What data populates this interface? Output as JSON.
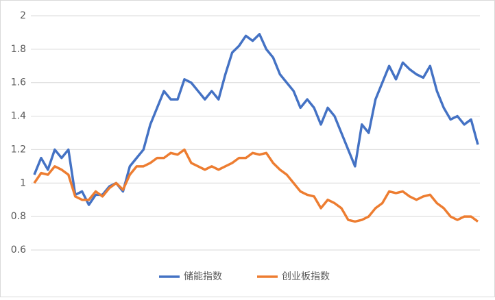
{
  "chart_data": {
    "type": "line",
    "categories": [
      null,
      null,
      null,
      null,
      null,
      null,
      null,
      null,
      null,
      null,
      null,
      null,
      null,
      null,
      null,
      null,
      null,
      null,
      null,
      null,
      null,
      null,
      null,
      null,
      null,
      null,
      null,
      null,
      null,
      null,
      null,
      null,
      null,
      null,
      null,
      null,
      null,
      null,
      null,
      null,
      null,
      null,
      null,
      null,
      null,
      null,
      null,
      null,
      null,
      null,
      null,
      null,
      null,
      null,
      null,
      null,
      null,
      null,
      null,
      null,
      null,
      null,
      null,
      null,
      null,
      null
    ],
    "series": [
      {
        "name": "储能指数",
        "color": "#4472c4",
        "values": [
          1.05,
          1.15,
          1.08,
          1.2,
          1.15,
          1.2,
          0.93,
          0.95,
          0.87,
          0.93,
          0.93,
          0.98,
          1.0,
          0.95,
          1.1,
          1.15,
          1.2,
          1.35,
          1.45,
          1.55,
          1.5,
          1.5,
          1.62,
          1.6,
          1.55,
          1.5,
          1.55,
          1.5,
          1.65,
          1.78,
          1.82,
          1.88,
          1.85,
          1.89,
          1.8,
          1.75,
          1.65,
          1.6,
          1.55,
          1.45,
          1.5,
          1.45,
          1.35,
          1.45,
          1.4,
          1.3,
          1.2,
          1.1,
          1.35,
          1.3,
          1.5,
          1.6,
          1.7,
          1.62,
          1.72,
          1.68,
          1.65,
          1.63,
          1.7,
          1.55,
          1.45,
          1.38,
          1.4,
          1.35,
          1.38,
          1.23
        ]
      },
      {
        "name": "创业板指数",
        "color": "#ed7d31",
        "values": [
          1.0,
          1.06,
          1.05,
          1.1,
          1.08,
          1.05,
          0.92,
          0.9,
          0.9,
          0.95,
          0.92,
          0.97,
          1.0,
          0.96,
          1.05,
          1.1,
          1.1,
          1.12,
          1.15,
          1.15,
          1.18,
          1.17,
          1.2,
          1.12,
          1.1,
          1.08,
          1.1,
          1.08,
          1.1,
          1.12,
          1.15,
          1.15,
          1.18,
          1.17,
          1.18,
          1.12,
          1.08,
          1.05,
          1.0,
          0.95,
          0.93,
          0.92,
          0.85,
          0.9,
          0.88,
          0.85,
          0.78,
          0.77,
          0.78,
          0.8,
          0.85,
          0.88,
          0.95,
          0.94,
          0.95,
          0.92,
          0.9,
          0.92,
          0.93,
          0.88,
          0.85,
          0.8,
          0.78,
          0.8,
          0.8,
          0.77
        ]
      }
    ],
    "ylim": [
      0.6,
      2
    ],
    "yticks": [
      0.6,
      0.8,
      1,
      1.2,
      1.4,
      1.6,
      1.8,
      2
    ],
    "grid": true,
    "legend": "bottom"
  }
}
